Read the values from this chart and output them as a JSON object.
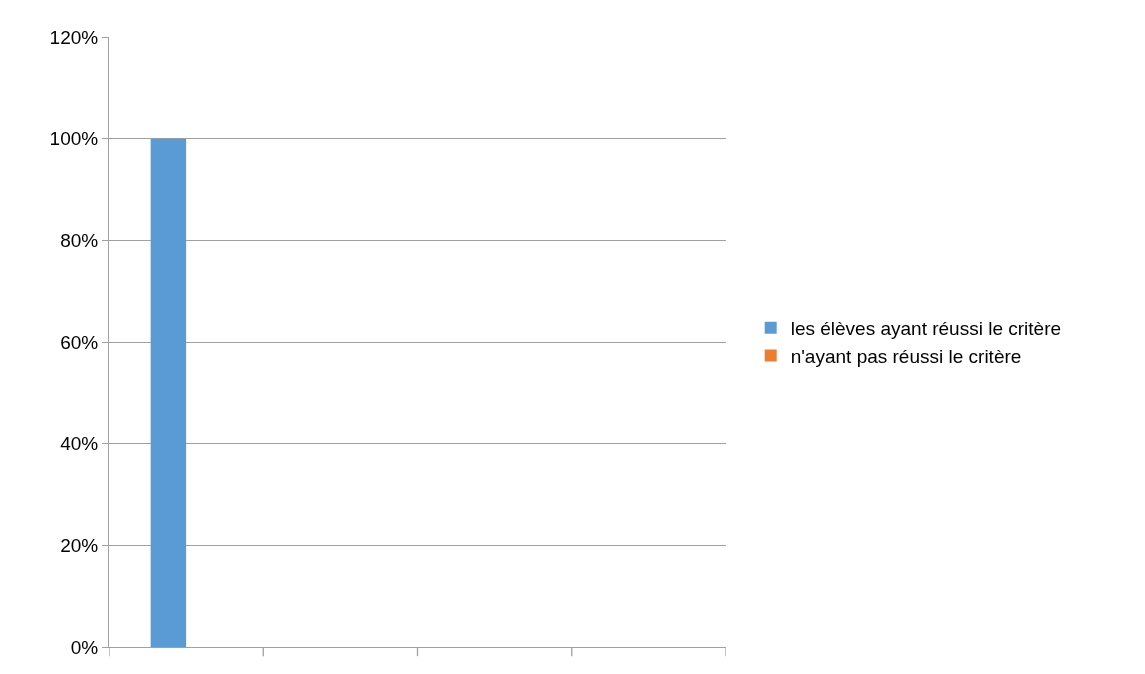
{
  "chart_data": {
    "type": "bar",
    "categories": [
      null,
      null,
      null,
      null
    ],
    "series": [
      {
        "name": "les élèves ayant réussi le critère",
        "color": "#5b9bd5",
        "values": [
          100,
          null,
          null,
          null
        ]
      },
      {
        "name": "n'ayant pas réussi le critère",
        "color": "#ed7d31",
        "values": [
          0,
          null,
          null,
          null
        ]
      }
    ],
    "ylim": [
      0,
      120
    ],
    "yticks": [
      {
        "value": 0,
        "label": "0%"
      },
      {
        "value": 20,
        "label": "20%"
      },
      {
        "value": 40,
        "label": "40%"
      },
      {
        "value": 60,
        "label": "60%"
      },
      {
        "value": 80,
        "label": "80%"
      },
      {
        "value": 100,
        "label": "100%"
      },
      {
        "value": 120,
        "label": "120%"
      }
    ],
    "grid": "y",
    "legend": "right"
  }
}
